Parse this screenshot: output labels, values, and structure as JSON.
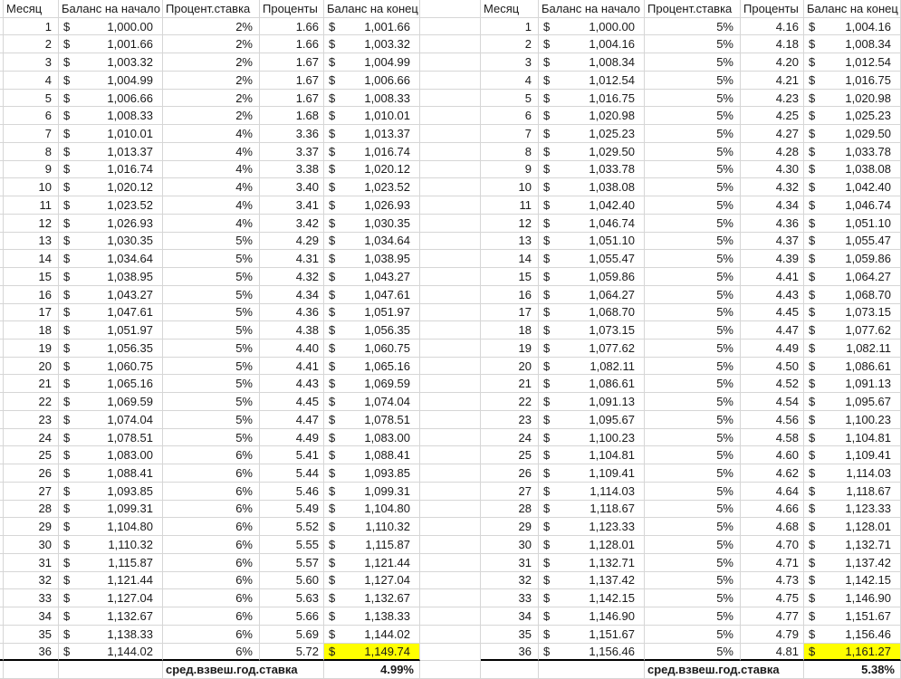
{
  "columns": [
    "Месяц",
    "Баланс на начало",
    "Процент.ставка",
    "Проценты",
    "Баланс на конец"
  ],
  "currency_symbol": "$",
  "summary_label": "сред.взвеш.год.ставка",
  "highlight_color": "#ffff00",
  "tables": [
    {
      "id": "left",
      "summary_value": "4.99%",
      "rows": [
        [
          "1",
          "1,000.00",
          "2%",
          "1.66",
          "1,001.66"
        ],
        [
          "2",
          "1,001.66",
          "2%",
          "1.66",
          "1,003.32"
        ],
        [
          "3",
          "1,003.32",
          "2%",
          "1.67",
          "1,004.99"
        ],
        [
          "4",
          "1,004.99",
          "2%",
          "1.67",
          "1,006.66"
        ],
        [
          "5",
          "1,006.66",
          "2%",
          "1.67",
          "1,008.33"
        ],
        [
          "6",
          "1,008.33",
          "2%",
          "1.68",
          "1,010.01"
        ],
        [
          "7",
          "1,010.01",
          "4%",
          "3.36",
          "1,013.37"
        ],
        [
          "8",
          "1,013.37",
          "4%",
          "3.37",
          "1,016.74"
        ],
        [
          "9",
          "1,016.74",
          "4%",
          "3.38",
          "1,020.12"
        ],
        [
          "10",
          "1,020.12",
          "4%",
          "3.40",
          "1,023.52"
        ],
        [
          "11",
          "1,023.52",
          "4%",
          "3.41",
          "1,026.93"
        ],
        [
          "12",
          "1,026.93",
          "4%",
          "3.42",
          "1,030.35"
        ],
        [
          "13",
          "1,030.35",
          "5%",
          "4.29",
          "1,034.64"
        ],
        [
          "14",
          "1,034.64",
          "5%",
          "4.31",
          "1,038.95"
        ],
        [
          "15",
          "1,038.95",
          "5%",
          "4.32",
          "1,043.27"
        ],
        [
          "16",
          "1,043.27",
          "5%",
          "4.34",
          "1,047.61"
        ],
        [
          "17",
          "1,047.61",
          "5%",
          "4.36",
          "1,051.97"
        ],
        [
          "18",
          "1,051.97",
          "5%",
          "4.38",
          "1,056.35"
        ],
        [
          "19",
          "1,056.35",
          "5%",
          "4.40",
          "1,060.75"
        ],
        [
          "20",
          "1,060.75",
          "5%",
          "4.41",
          "1,065.16"
        ],
        [
          "21",
          "1,065.16",
          "5%",
          "4.43",
          "1,069.59"
        ],
        [
          "22",
          "1,069.59",
          "5%",
          "4.45",
          "1,074.04"
        ],
        [
          "23",
          "1,074.04",
          "5%",
          "4.47",
          "1,078.51"
        ],
        [
          "24",
          "1,078.51",
          "5%",
          "4.49",
          "1,083.00"
        ],
        [
          "25",
          "1,083.00",
          "6%",
          "5.41",
          "1,088.41"
        ],
        [
          "26",
          "1,088.41",
          "6%",
          "5.44",
          "1,093.85"
        ],
        [
          "27",
          "1,093.85",
          "6%",
          "5.46",
          "1,099.31"
        ],
        [
          "28",
          "1,099.31",
          "6%",
          "5.49",
          "1,104.80"
        ],
        [
          "29",
          "1,104.80",
          "6%",
          "5.52",
          "1,110.32"
        ],
        [
          "30",
          "1,110.32",
          "6%",
          "5.55",
          "1,115.87"
        ],
        [
          "31",
          "1,115.87",
          "6%",
          "5.57",
          "1,121.44"
        ],
        [
          "32",
          "1,121.44",
          "6%",
          "5.60",
          "1,127.04"
        ],
        [
          "33",
          "1,127.04",
          "6%",
          "5.63",
          "1,132.67"
        ],
        [
          "34",
          "1,132.67",
          "6%",
          "5.66",
          "1,138.33"
        ],
        [
          "35",
          "1,138.33",
          "6%",
          "5.69",
          "1,144.02"
        ],
        [
          "36",
          "1,144.02",
          "6%",
          "5.72",
          "1,149.74"
        ]
      ]
    },
    {
      "id": "right",
      "summary_value": "5.38%",
      "rows": [
        [
          "1",
          "1,000.00",
          "5%",
          "4.16",
          "1,004.16"
        ],
        [
          "2",
          "1,004.16",
          "5%",
          "4.18",
          "1,008.34"
        ],
        [
          "3",
          "1,008.34",
          "5%",
          "4.20",
          "1,012.54"
        ],
        [
          "4",
          "1,012.54",
          "5%",
          "4.21",
          "1,016.75"
        ],
        [
          "5",
          "1,016.75",
          "5%",
          "4.23",
          "1,020.98"
        ],
        [
          "6",
          "1,020.98",
          "5%",
          "4.25",
          "1,025.23"
        ],
        [
          "7",
          "1,025.23",
          "5%",
          "4.27",
          "1,029.50"
        ],
        [
          "8",
          "1,029.50",
          "5%",
          "4.28",
          "1,033.78"
        ],
        [
          "9",
          "1,033.78",
          "5%",
          "4.30",
          "1,038.08"
        ],
        [
          "10",
          "1,038.08",
          "5%",
          "4.32",
          "1,042.40"
        ],
        [
          "11",
          "1,042.40",
          "5%",
          "4.34",
          "1,046.74"
        ],
        [
          "12",
          "1,046.74",
          "5%",
          "4.36",
          "1,051.10"
        ],
        [
          "13",
          "1,051.10",
          "5%",
          "4.37",
          "1,055.47"
        ],
        [
          "14",
          "1,055.47",
          "5%",
          "4.39",
          "1,059.86"
        ],
        [
          "15",
          "1,059.86",
          "5%",
          "4.41",
          "1,064.27"
        ],
        [
          "16",
          "1,064.27",
          "5%",
          "4.43",
          "1,068.70"
        ],
        [
          "17",
          "1,068.70",
          "5%",
          "4.45",
          "1,073.15"
        ],
        [
          "18",
          "1,073.15",
          "5%",
          "4.47",
          "1,077.62"
        ],
        [
          "19",
          "1,077.62",
          "5%",
          "4.49",
          "1,082.11"
        ],
        [
          "20",
          "1,082.11",
          "5%",
          "4.50",
          "1,086.61"
        ],
        [
          "21",
          "1,086.61",
          "5%",
          "4.52",
          "1,091.13"
        ],
        [
          "22",
          "1,091.13",
          "5%",
          "4.54",
          "1,095.67"
        ],
        [
          "23",
          "1,095.67",
          "5%",
          "4.56",
          "1,100.23"
        ],
        [
          "24",
          "1,100.23",
          "5%",
          "4.58",
          "1,104.81"
        ],
        [
          "25",
          "1,104.81",
          "5%",
          "4.60",
          "1,109.41"
        ],
        [
          "26",
          "1,109.41",
          "5%",
          "4.62",
          "1,114.03"
        ],
        [
          "27",
          "1,114.03",
          "5%",
          "4.64",
          "1,118.67"
        ],
        [
          "28",
          "1,118.67",
          "5%",
          "4.66",
          "1,123.33"
        ],
        [
          "29",
          "1,123.33",
          "5%",
          "4.68",
          "1,128.01"
        ],
        [
          "30",
          "1,128.01",
          "5%",
          "4.70",
          "1,132.71"
        ],
        [
          "31",
          "1,132.71",
          "5%",
          "4.71",
          "1,137.42"
        ],
        [
          "32",
          "1,137.42",
          "5%",
          "4.73",
          "1,142.15"
        ],
        [
          "33",
          "1,142.15",
          "5%",
          "4.75",
          "1,146.90"
        ],
        [
          "34",
          "1,146.90",
          "5%",
          "4.77",
          "1,151.67"
        ],
        [
          "35",
          "1,151.67",
          "5%",
          "4.79",
          "1,156.46"
        ],
        [
          "36",
          "1,156.46",
          "5%",
          "4.81",
          "1,161.27"
        ]
      ]
    }
  ]
}
